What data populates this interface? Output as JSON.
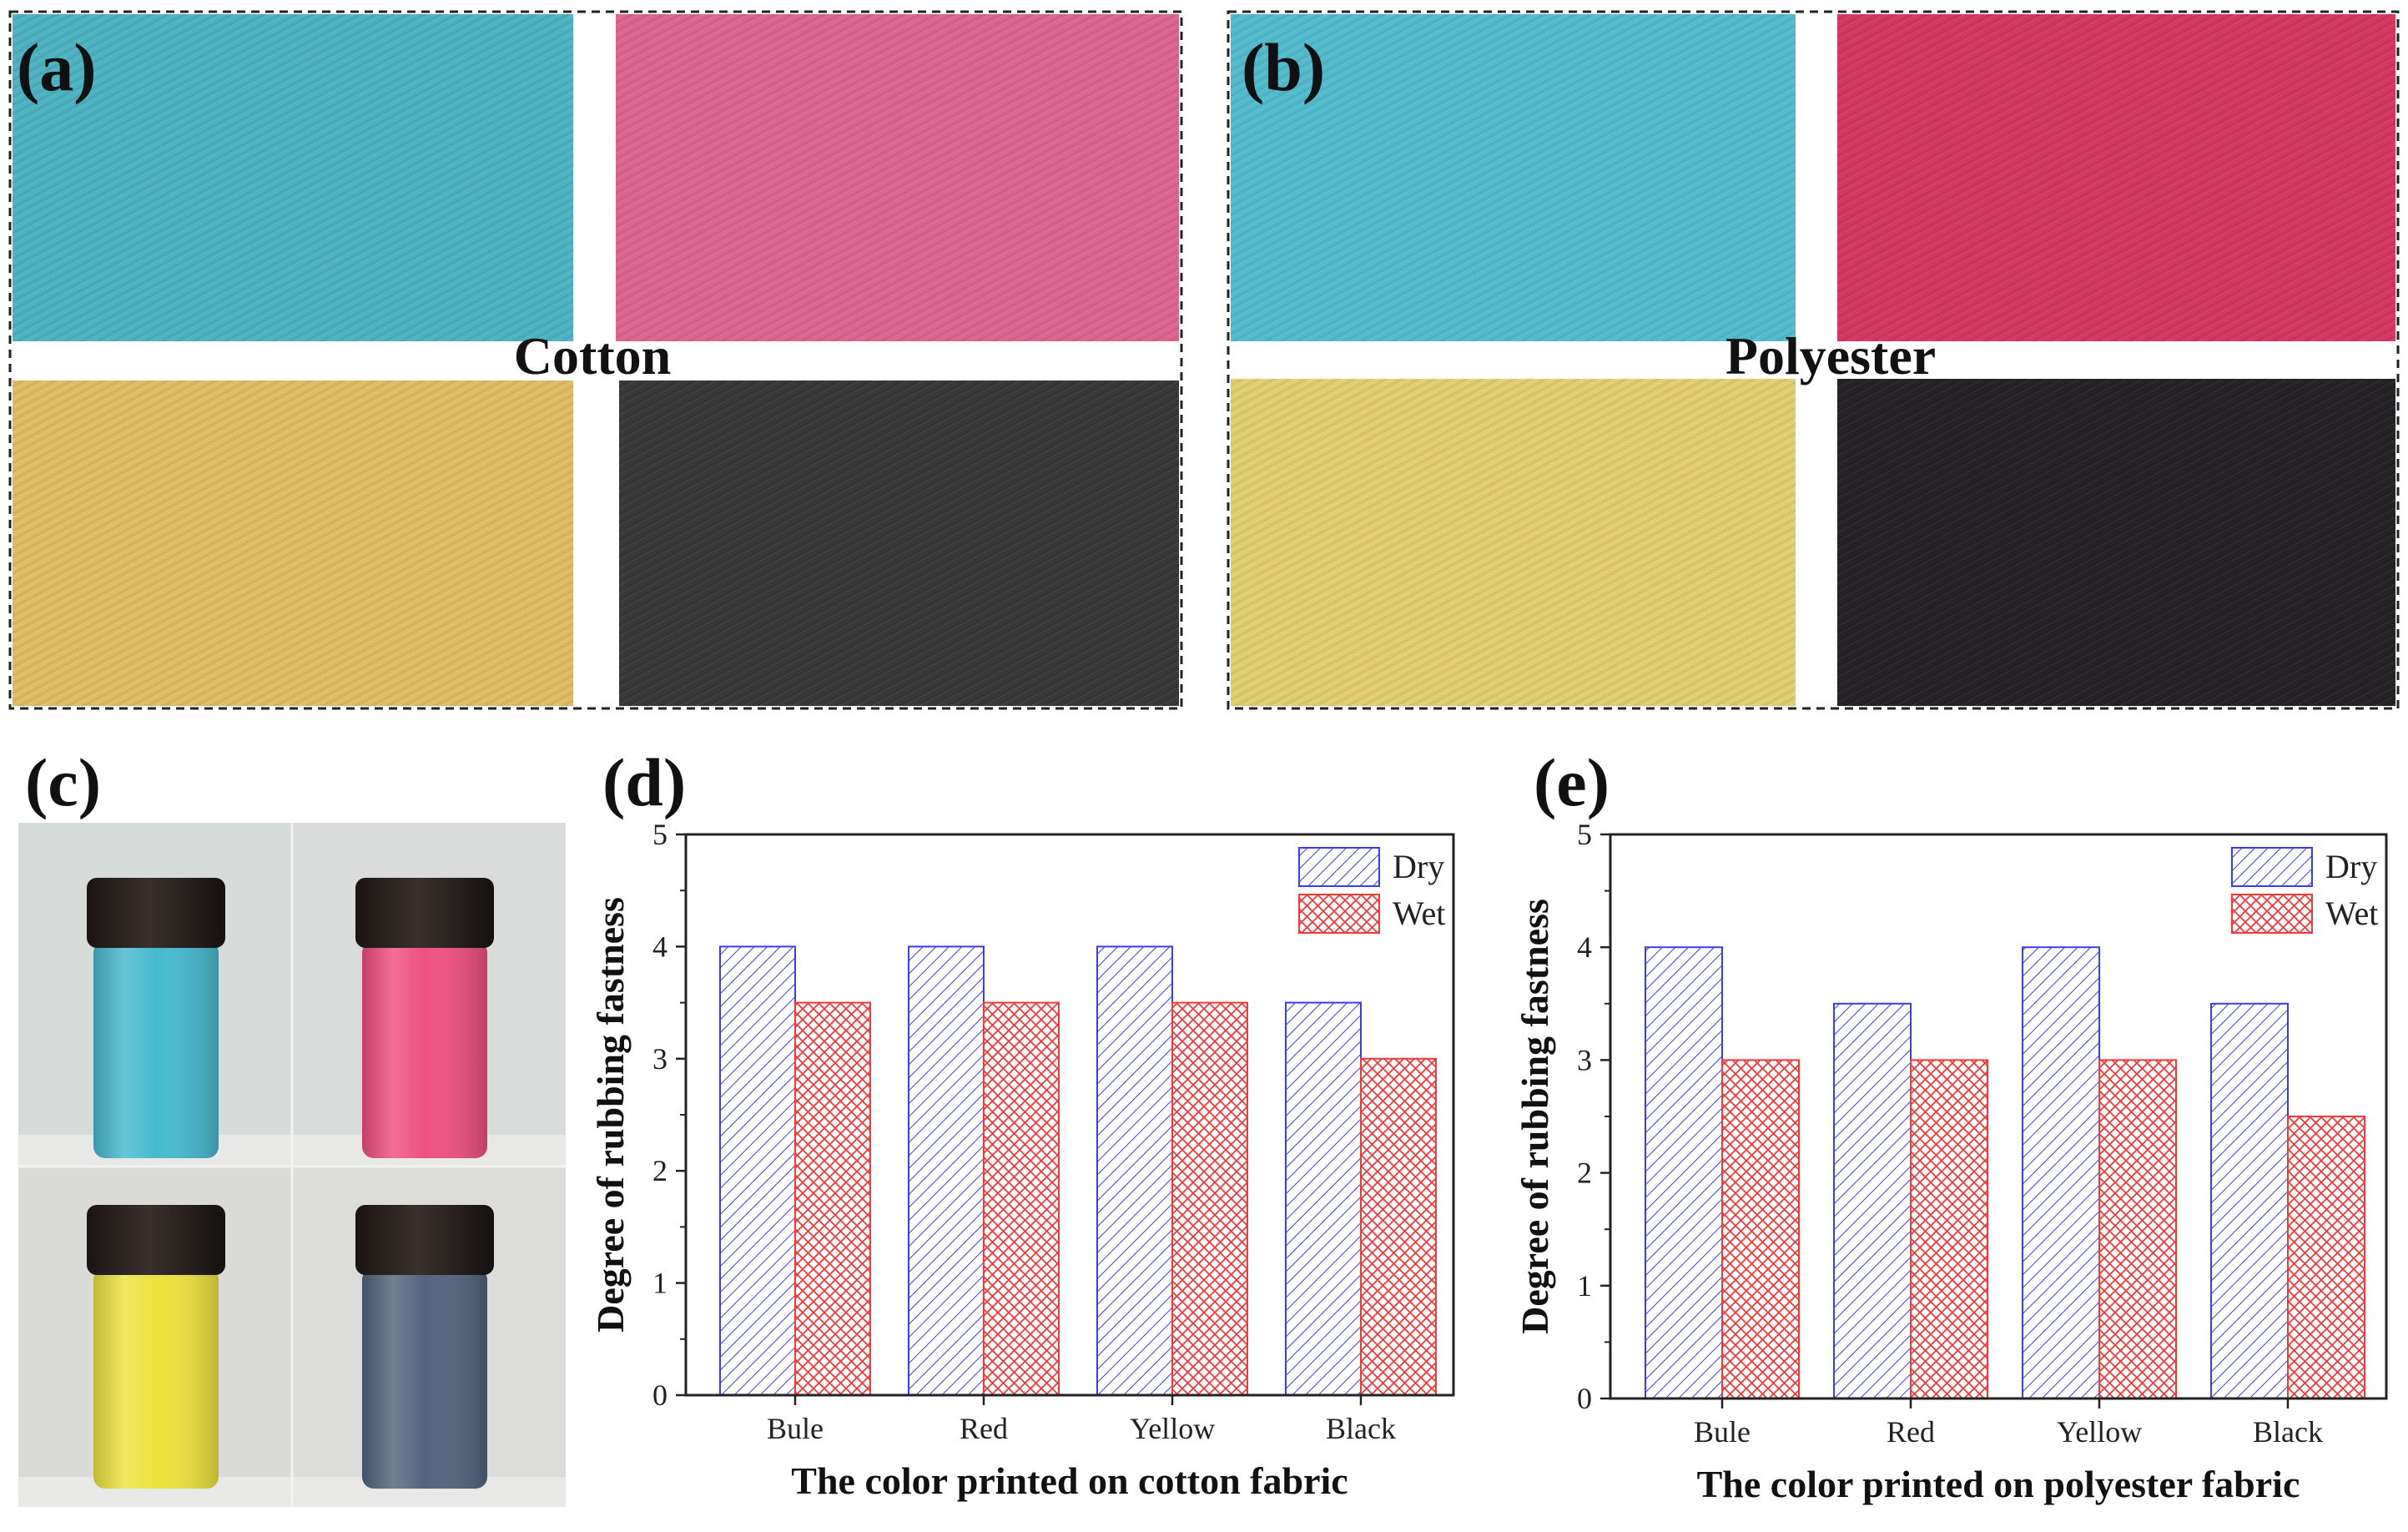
{
  "colors": {
    "cotton": [
      "#56c6d6",
      "#f2709e",
      "#f6d06e",
      "#3e3e3e"
    ],
    "polyester": [
      "#5bcfe3",
      "#ea3e6b",
      "#f8e47c",
      "#282628"
    ],
    "bottles": [
      "#47b9cf",
      "#ef4f82",
      "#ece33d",
      "#52647e"
    ],
    "cap": "#2e2522",
    "dry": "#3b3bf0",
    "wet": "#f03a3a"
  },
  "panels": {
    "a": {
      "label": "(a)",
      "caption": "Cotton"
    },
    "b": {
      "label": "(b)",
      "caption": "Polyester"
    },
    "c": {
      "label": "(c)"
    }
  },
  "chart_data": [
    {
      "panel": "(d)",
      "type": "bar",
      "categories": [
        "Bule",
        "Red",
        "Yellow",
        "Black"
      ],
      "series": [
        {
          "name": "Dry",
          "values": [
            4,
            4,
            4,
            3.5
          ]
        },
        {
          "name": "Wet",
          "values": [
            3.5,
            3.5,
            3.5,
            3
          ]
        }
      ],
      "xlabel": "The color printed on cotton fabric",
      "ylabel": "Degree of rubbing fastness",
      "ylim": [
        0,
        5
      ],
      "yticks": [
        "0",
        "1",
        "2",
        "3",
        "4",
        "5"
      ],
      "legend": "top-right"
    },
    {
      "panel": "(e)",
      "type": "bar",
      "categories": [
        "Bule",
        "Red",
        "Yellow",
        "Black"
      ],
      "series": [
        {
          "name": "Dry",
          "values": [
            4,
            3.5,
            4,
            3.5
          ]
        },
        {
          "name": "Wet",
          "values": [
            3,
            3,
            3,
            2.5
          ]
        }
      ],
      "xlabel": "The color printed on polyester fabric",
      "ylabel": "Degree of rubbing fastness",
      "ylim": [
        0,
        5
      ],
      "yticks": [
        "0",
        "1",
        "2",
        "3",
        "4",
        "5"
      ],
      "legend": "top-right"
    }
  ]
}
